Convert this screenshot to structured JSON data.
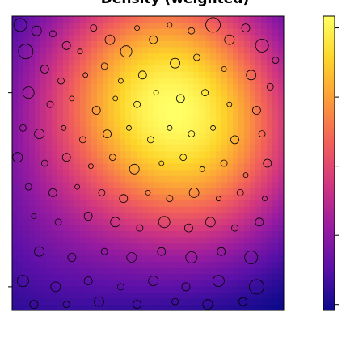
{
  "chart_data": {
    "type": "heatmap",
    "title": "Density (weighted)",
    "xlabel": "",
    "ylabel": "",
    "grid": false,
    "legend": "right colorbar",
    "colormap": [
      "#0b0a8a",
      "#5b10a8",
      "#9a1c9f",
      "#d1367f",
      "#f2605a",
      "#fb9b3a",
      "#fdd52a",
      "#ffff66"
    ],
    "colorbar_ticks": 5,
    "density_peaks": [
      {
        "x": 0.72,
        "y": 0.56,
        "weight": 1.0
      },
      {
        "x": 0.56,
        "y": 0.86,
        "weight": 0.7
      },
      {
        "x": 0.3,
        "y": 0.7,
        "weight": 0.45
      },
      {
        "x": 0.08,
        "y": 0.2,
        "weight": 0.25
      }
    ],
    "points": [
      {
        "x": 0.03,
        "y": 0.97,
        "r": 8
      },
      {
        "x": 0.09,
        "y": 0.95,
        "r": 6
      },
      {
        "x": 0.15,
        "y": 0.94,
        "r": 4
      },
      {
        "x": 0.05,
        "y": 0.88,
        "r": 9
      },
      {
        "x": 0.2,
        "y": 0.9,
        "r": 5
      },
      {
        "x": 0.25,
        "y": 0.88,
        "r": 3
      },
      {
        "x": 0.3,
        "y": 0.96,
        "r": 4
      },
      {
        "x": 0.36,
        "y": 0.92,
        "r": 6
      },
      {
        "x": 0.42,
        "y": 0.88,
        "r": 7
      },
      {
        "x": 0.46,
        "y": 0.96,
        "r": 3
      },
      {
        "x": 0.52,
        "y": 0.92,
        "r": 5
      },
      {
        "x": 0.58,
        "y": 0.97,
        "r": 3
      },
      {
        "x": 0.66,
        "y": 0.95,
        "r": 4
      },
      {
        "x": 0.74,
        "y": 0.97,
        "r": 9
      },
      {
        "x": 0.8,
        "y": 0.92,
        "r": 6
      },
      {
        "x": 0.86,
        "y": 0.96,
        "r": 5
      },
      {
        "x": 0.92,
        "y": 0.9,
        "r": 8
      },
      {
        "x": 0.97,
        "y": 0.85,
        "r": 4
      },
      {
        "x": 0.12,
        "y": 0.82,
        "r": 5
      },
      {
        "x": 0.18,
        "y": 0.78,
        "r": 4
      },
      {
        "x": 0.27,
        "y": 0.8,
        "r": 3
      },
      {
        "x": 0.34,
        "y": 0.83,
        "r": 4
      },
      {
        "x": 0.4,
        "y": 0.78,
        "r": 3
      },
      {
        "x": 0.48,
        "y": 0.8,
        "r": 5
      },
      {
        "x": 0.6,
        "y": 0.84,
        "r": 6
      },
      {
        "x": 0.68,
        "y": 0.86,
        "r": 4
      },
      {
        "x": 0.78,
        "y": 0.82,
        "r": 3
      },
      {
        "x": 0.88,
        "y": 0.8,
        "r": 6
      },
      {
        "x": 0.95,
        "y": 0.76,
        "r": 4
      },
      {
        "x": 0.06,
        "y": 0.74,
        "r": 7
      },
      {
        "x": 0.14,
        "y": 0.7,
        "r": 4
      },
      {
        "x": 0.22,
        "y": 0.72,
        "r": 3
      },
      {
        "x": 0.31,
        "y": 0.68,
        "r": 5
      },
      {
        "x": 0.38,
        "y": 0.72,
        "r": 3
      },
      {
        "x": 0.46,
        "y": 0.7,
        "r": 4
      },
      {
        "x": 0.53,
        "y": 0.74,
        "r": 3
      },
      {
        "x": 0.62,
        "y": 0.72,
        "r": 5
      },
      {
        "x": 0.71,
        "y": 0.74,
        "r": 4
      },
      {
        "x": 0.8,
        "y": 0.7,
        "r": 3
      },
      {
        "x": 0.9,
        "y": 0.68,
        "r": 5
      },
      {
        "x": 0.04,
        "y": 0.62,
        "r": 4
      },
      {
        "x": 0.1,
        "y": 0.6,
        "r": 6
      },
      {
        "x": 0.19,
        "y": 0.62,
        "r": 3
      },
      {
        "x": 0.26,
        "y": 0.58,
        "r": 4
      },
      {
        "x": 0.35,
        "y": 0.6,
        "r": 5
      },
      {
        "x": 0.43,
        "y": 0.62,
        "r": 3
      },
      {
        "x": 0.51,
        "y": 0.58,
        "r": 4
      },
      {
        "x": 0.58,
        "y": 0.62,
        "r": 3
      },
      {
        "x": 0.66,
        "y": 0.6,
        "r": 4
      },
      {
        "x": 0.74,
        "y": 0.62,
        "r": 3
      },
      {
        "x": 0.82,
        "y": 0.58,
        "r": 5
      },
      {
        "x": 0.92,
        "y": 0.6,
        "r": 4
      },
      {
        "x": 0.02,
        "y": 0.52,
        "r": 6
      },
      {
        "x": 0.12,
        "y": 0.5,
        "r": 4
      },
      {
        "x": 0.2,
        "y": 0.52,
        "r": 5
      },
      {
        "x": 0.29,
        "y": 0.49,
        "r": 3
      },
      {
        "x": 0.37,
        "y": 0.52,
        "r": 4
      },
      {
        "x": 0.45,
        "y": 0.48,
        "r": 6
      },
      {
        "x": 0.55,
        "y": 0.5,
        "r": 3
      },
      {
        "x": 0.63,
        "y": 0.52,
        "r": 4
      },
      {
        "x": 0.7,
        "y": 0.48,
        "r": 3
      },
      {
        "x": 0.78,
        "y": 0.5,
        "r": 4
      },
      {
        "x": 0.86,
        "y": 0.46,
        "r": 3
      },
      {
        "x": 0.94,
        "y": 0.5,
        "r": 5
      },
      {
        "x": 0.06,
        "y": 0.42,
        "r": 4
      },
      {
        "x": 0.15,
        "y": 0.4,
        "r": 5
      },
      {
        "x": 0.24,
        "y": 0.42,
        "r": 3
      },
      {
        "x": 0.33,
        "y": 0.4,
        "r": 4
      },
      {
        "x": 0.41,
        "y": 0.38,
        "r": 5
      },
      {
        "x": 0.5,
        "y": 0.4,
        "r": 3
      },
      {
        "x": 0.58,
        "y": 0.38,
        "r": 4
      },
      {
        "x": 0.67,
        "y": 0.4,
        "r": 6
      },
      {
        "x": 0.76,
        "y": 0.38,
        "r": 3
      },
      {
        "x": 0.84,
        "y": 0.4,
        "r": 4
      },
      {
        "x": 0.93,
        "y": 0.38,
        "r": 3
      },
      {
        "x": 0.08,
        "y": 0.32,
        "r": 3
      },
      {
        "x": 0.17,
        "y": 0.3,
        "r": 4
      },
      {
        "x": 0.28,
        "y": 0.32,
        "r": 5
      },
      {
        "x": 0.38,
        "y": 0.3,
        "r": 6
      },
      {
        "x": 0.47,
        "y": 0.28,
        "r": 4
      },
      {
        "x": 0.56,
        "y": 0.3,
        "r": 7
      },
      {
        "x": 0.65,
        "y": 0.28,
        "r": 5
      },
      {
        "x": 0.73,
        "y": 0.3,
        "r": 6
      },
      {
        "x": 0.82,
        "y": 0.28,
        "r": 4
      },
      {
        "x": 0.91,
        "y": 0.3,
        "r": 5
      },
      {
        "x": 0.1,
        "y": 0.2,
        "r": 6
      },
      {
        "x": 0.22,
        "y": 0.18,
        "r": 5
      },
      {
        "x": 0.34,
        "y": 0.2,
        "r": 4
      },
      {
        "x": 0.44,
        "y": 0.18,
        "r": 6
      },
      {
        "x": 0.55,
        "y": 0.2,
        "r": 5
      },
      {
        "x": 0.66,
        "y": 0.18,
        "r": 7
      },
      {
        "x": 0.77,
        "y": 0.2,
        "r": 5
      },
      {
        "x": 0.88,
        "y": 0.18,
        "r": 8
      },
      {
        "x": 0.04,
        "y": 0.1,
        "r": 7
      },
      {
        "x": 0.16,
        "y": 0.08,
        "r": 6
      },
      {
        "x": 0.28,
        "y": 0.1,
        "r": 5
      },
      {
        "x": 0.4,
        "y": 0.08,
        "r": 4
      },
      {
        "x": 0.52,
        "y": 0.1,
        "r": 6
      },
      {
        "x": 0.64,
        "y": 0.08,
        "r": 5
      },
      {
        "x": 0.76,
        "y": 0.1,
        "r": 7
      },
      {
        "x": 0.9,
        "y": 0.08,
        "r": 9
      },
      {
        "x": 0.08,
        "y": 0.02,
        "r": 5
      },
      {
        "x": 0.2,
        "y": 0.02,
        "r": 4
      },
      {
        "x": 0.32,
        "y": 0.03,
        "r": 6
      },
      {
        "x": 0.46,
        "y": 0.02,
        "r": 5
      },
      {
        "x": 0.6,
        "y": 0.03,
        "r": 4
      },
      {
        "x": 0.72,
        "y": 0.02,
        "r": 6
      },
      {
        "x": 0.85,
        "y": 0.03,
        "r": 5
      }
    ]
  }
}
